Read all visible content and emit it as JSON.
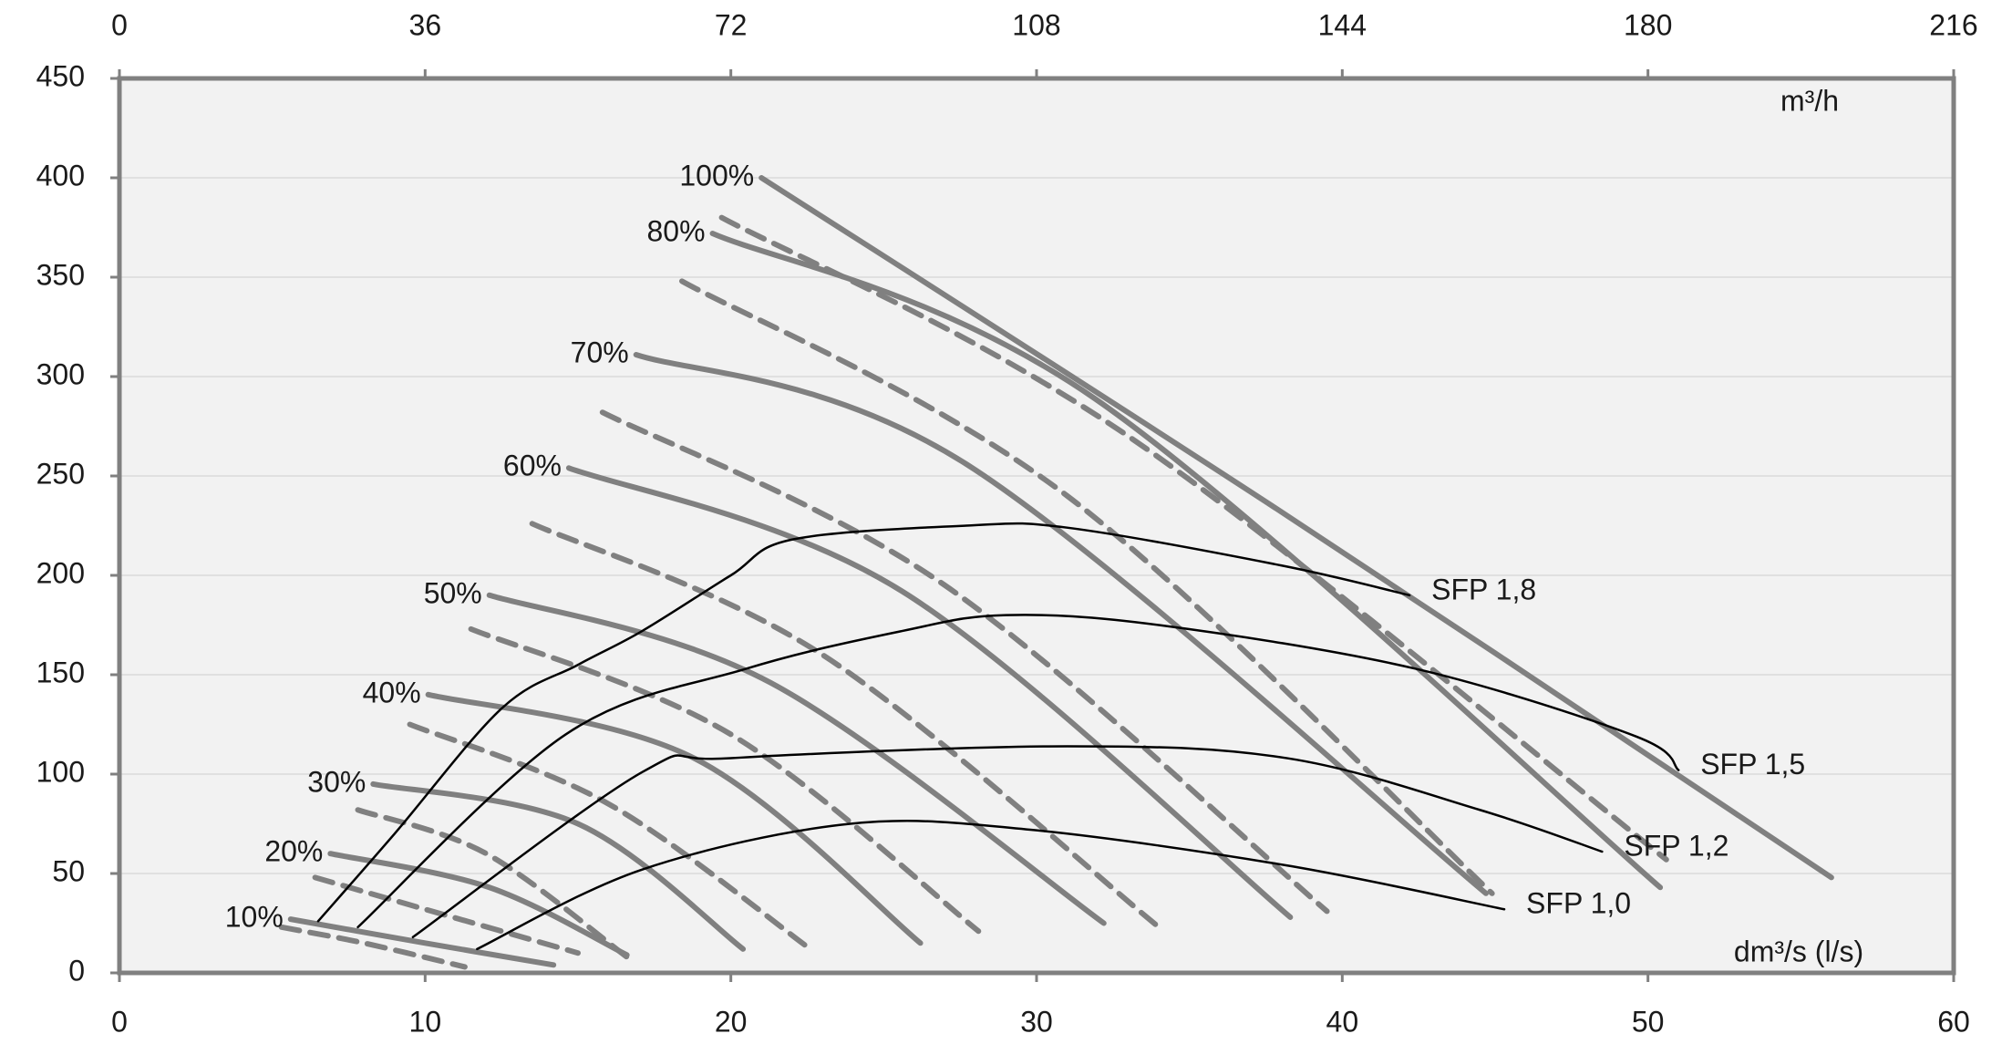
{
  "chart_data": {
    "type": "line",
    "x_label": "dm³/s (l/s)",
    "x2_label": "m³/h",
    "xlim": [
      0,
      60
    ],
    "xticks": [
      0,
      10,
      20,
      30,
      40,
      50,
      60
    ],
    "x2lim": [
      0,
      216
    ],
    "x2ticks": [
      0,
      36,
      72,
      108,
      144,
      180,
      216
    ],
    "ylim": [
      0,
      450
    ],
    "yticks": [
      0,
      50,
      100,
      150,
      200,
      250,
      300,
      350,
      400,
      450
    ],
    "grid": true,
    "series": [
      {
        "name": "100%",
        "color": "#808080",
        "style": "solid",
        "x": [
          21,
          38,
          56
        ],
        "values": [
          400,
          232,
          48
        ]
      },
      {
        "name": "80%",
        "color": "#808080",
        "style": "solid",
        "x": [
          19.4,
          31.9,
          50.4
        ],
        "values": [
          372,
          289,
          43
        ]
      },
      {
        "name": "70%",
        "color": "#808080",
        "style": "solid",
        "x": [
          16.9,
          27.7,
          44.7
        ],
        "values": [
          311,
          256,
          40
        ]
      },
      {
        "name": "60%",
        "color": "#808080",
        "style": "solid",
        "x": [
          14.7,
          25.6,
          38.3
        ],
        "values": [
          254,
          192,
          28
        ]
      },
      {
        "name": "50%",
        "color": "#808080",
        "style": "solid",
        "x": [
          12.1,
          21.3,
          32.2
        ],
        "values": [
          190,
          146,
          25
        ]
      },
      {
        "name": "40%",
        "color": "#808080",
        "style": "solid",
        "x": [
          10.1,
          18.8,
          26.2
        ],
        "values": [
          140,
          108,
          15
        ]
      },
      {
        "name": "30%",
        "color": "#808080",
        "style": "solid",
        "x": [
          8.3,
          15,
          20.4
        ],
        "values": [
          95,
          75,
          12
        ]
      },
      {
        "name": "20%",
        "color": "#808080",
        "style": "solid",
        "x": [
          6.9,
          12.1,
          16.6
        ],
        "values": [
          60,
          43,
          9
        ]
      },
      {
        "name": "10%",
        "color": "#808080",
        "style": "solid",
        "x": [
          5.6,
          10,
          14.2
        ],
        "values": [
          27,
          15,
          4
        ]
      },
      {
        "color": "#808080",
        "style": "dashed",
        "x": [
          19.7,
          33,
          50.6
        ],
        "values": [
          380,
          270,
          57
        ]
      },
      {
        "color": "#808080",
        "style": "dashed",
        "x": [
          18.4,
          31,
          44.9
        ],
        "values": [
          348,
          240,
          40
        ]
      },
      {
        "color": "#808080",
        "style": "dashed",
        "x": [
          15.8,
          27,
          39.5
        ],
        "values": [
          282,
          195,
          31
        ]
      },
      {
        "color": "#808080",
        "style": "dashed",
        "x": [
          13.5,
          23,
          34
        ],
        "values": [
          226,
          160,
          23
        ]
      },
      {
        "color": "#808080",
        "style": "dashed",
        "x": [
          11.5,
          20,
          28.1
        ],
        "values": [
          173,
          120,
          21
        ]
      },
      {
        "color": "#808080",
        "style": "dashed",
        "x": [
          9.5,
          16,
          22.6
        ],
        "values": [
          125,
          85,
          12
        ]
      },
      {
        "color": "#808080",
        "style": "dashed",
        "x": [
          7.8,
          12,
          16.6
        ],
        "values": [
          82,
          60,
          8
        ]
      },
      {
        "color": "#808080",
        "style": "dashed",
        "x": [
          6.4,
          10,
          15
        ],
        "values": [
          48,
          32,
          10
        ]
      },
      {
        "color": "#808080",
        "style": "dashed",
        "x": [
          5.3,
          8,
          11.3
        ],
        "values": [
          23,
          15,
          3
        ]
      },
      {
        "name": "SFP 1,8",
        "color": "#000000",
        "style": "thin",
        "x": [
          6.5,
          9,
          12.5,
          15,
          17.1,
          20,
          22,
          27.7,
          31,
          38,
          42.2
        ],
        "values": [
          26,
          70,
          133,
          155,
          172,
          200,
          218,
          225,
          224,
          205,
          190
        ]
      },
      {
        "name": "SFP 1,5",
        "color": "#000000",
        "style": "thin",
        "x": [
          7.8,
          14.6,
          20.5,
          25.6,
          29,
          34,
          42.4,
          49.6,
          51
        ],
        "values": [
          23,
          120,
          153,
          172,
          180,
          175,
          153,
          119,
          102
        ]
      },
      {
        "name": "SFP 1,2",
        "color": "#000000",
        "style": "thin",
        "x": [
          9.6,
          17.1,
          20,
          31,
          38.2,
          44.5,
          48.5
        ],
        "values": [
          18,
          101,
          108,
          114,
          108,
          82,
          61
        ]
      },
      {
        "name": "SFP 1,0",
        "color": "#000000",
        "style": "thin",
        "x": [
          11.7,
          17.1,
          23.9,
          29.8,
          38.2,
          45.3
        ],
        "values": [
          12,
          52,
          75,
          72,
          54,
          32
        ]
      }
    ]
  }
}
